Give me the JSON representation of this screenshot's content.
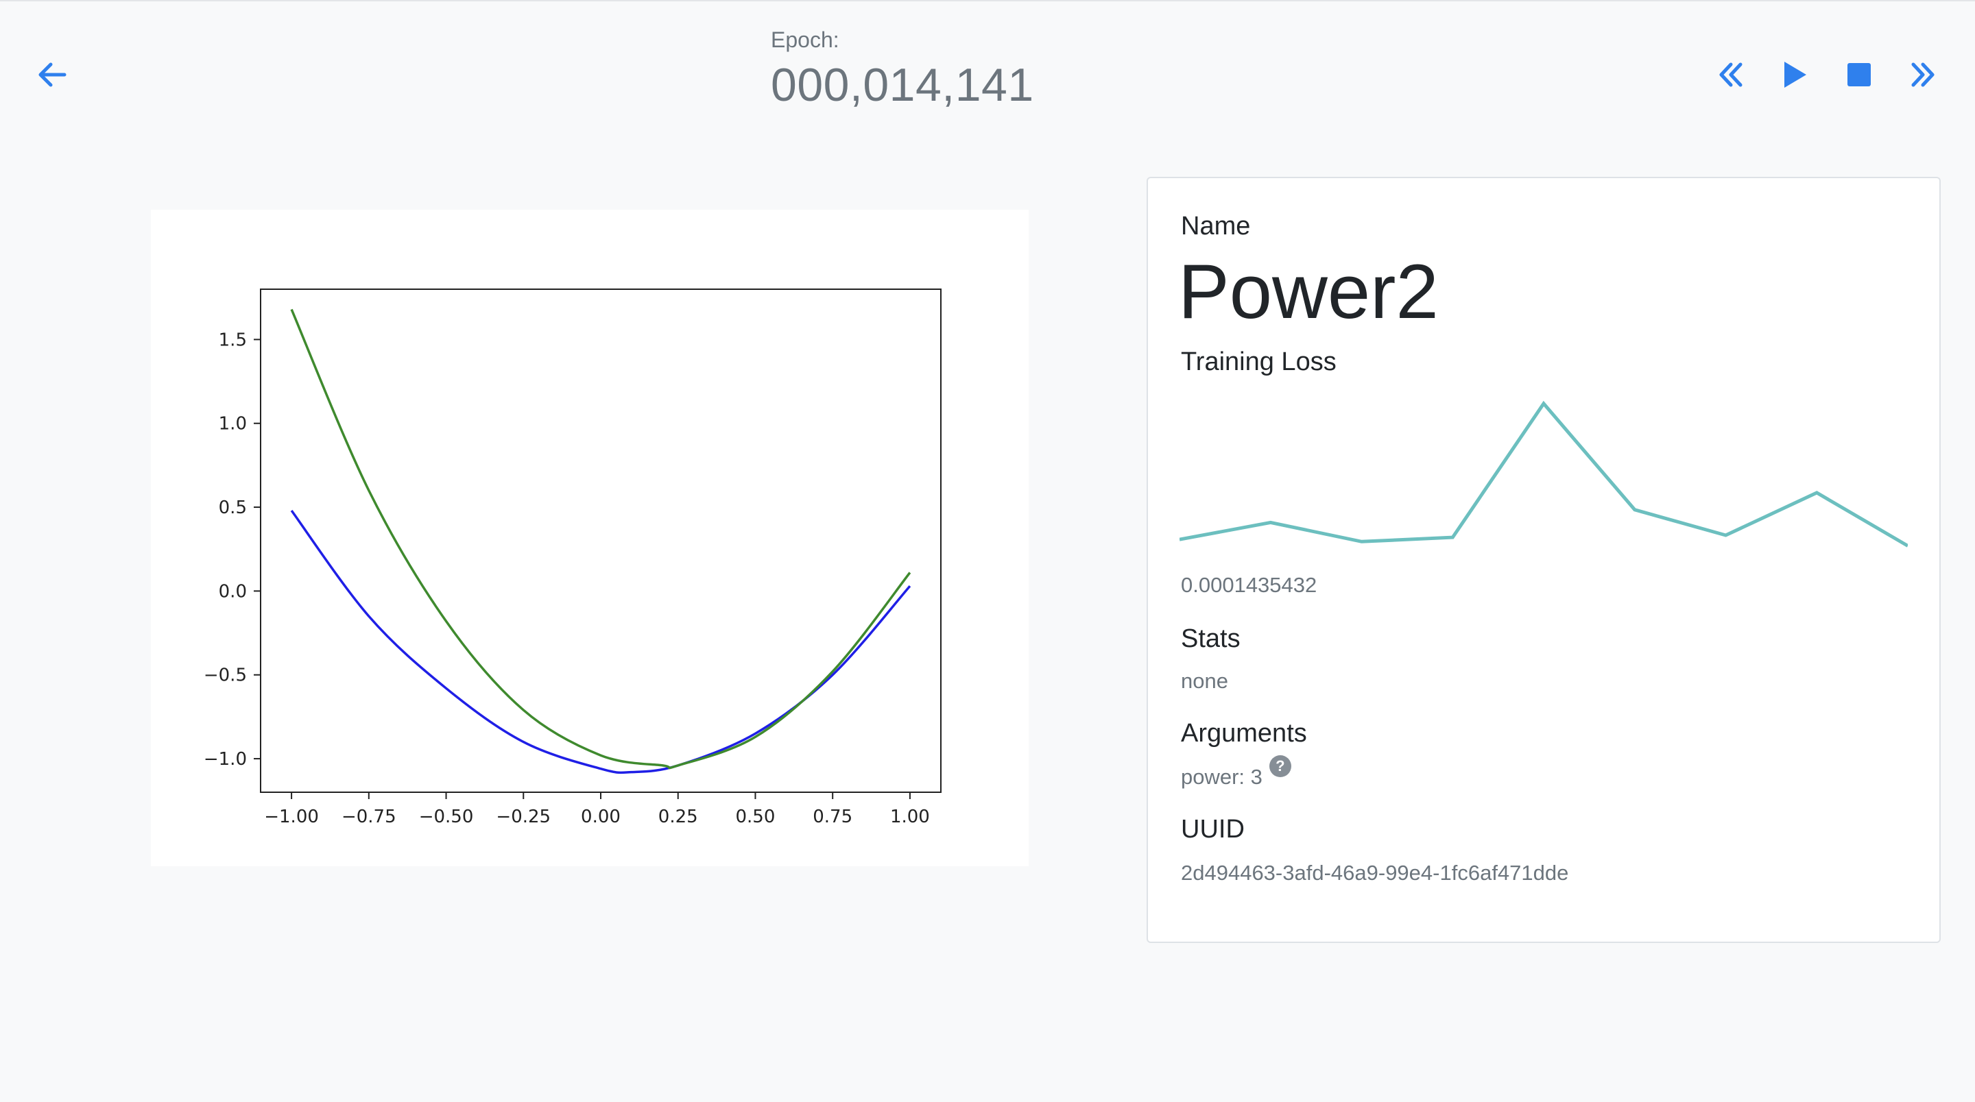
{
  "header": {
    "epoch_label": "Epoch:",
    "epoch_value": "000,014,141",
    "accent_color": "#2f80ed"
  },
  "controls": {
    "icons": [
      "back-arrow-icon",
      "rewind-icon",
      "play-icon",
      "stop-icon",
      "fast-forward-icon"
    ]
  },
  "chart_data": {
    "type": "line",
    "x_ticks": [
      "−1.00",
      "−0.75",
      "−0.50",
      "−0.25",
      "0.00",
      "0.25",
      "0.50",
      "0.75",
      "1.00"
    ],
    "y_ticks": [
      "−1.0",
      "−0.5",
      "0.0",
      "0.5",
      "1.0",
      "1.5"
    ],
    "xlim": [
      -1.1,
      1.1
    ],
    "ylim": [
      -1.2,
      1.8
    ],
    "series": [
      {
        "color": "#1f1fe6",
        "x": [
          -1.0,
          -0.75,
          -0.5,
          -0.25,
          0.0,
          0.1,
          0.25,
          0.5,
          0.75,
          1.0
        ],
        "y": [
          0.48,
          -0.15,
          -0.58,
          -0.9,
          -1.06,
          -1.08,
          -1.04,
          -0.85,
          -0.5,
          0.03
        ]
      },
      {
        "color": "#3f8a2e",
        "x": [
          -1.0,
          -0.75,
          -0.5,
          -0.25,
          0.0,
          0.2,
          0.25,
          0.5,
          0.75,
          1.0
        ],
        "y": [
          1.68,
          0.6,
          -0.18,
          -0.71,
          -0.98,
          -1.04,
          -1.04,
          -0.87,
          -0.48,
          0.11
        ]
      }
    ]
  },
  "info": {
    "name_label": "Name",
    "name_value": "Power2",
    "loss_label": "Training Loss",
    "loss_value": "0.0001435432",
    "loss_spark": {
      "color": "#6cbfbf",
      "values": [
        0.08,
        0.16,
        0.07,
        0.09,
        0.72,
        0.22,
        0.1,
        0.3,
        0.05
      ]
    },
    "stats_label": "Stats",
    "stats_value": "none",
    "args_label": "Arguments",
    "args_value": "power: 3",
    "help_glyph": "?",
    "uuid_label": "UUID",
    "uuid_value": "2d494463-3afd-46a9-99e4-1fc6af471dde"
  }
}
